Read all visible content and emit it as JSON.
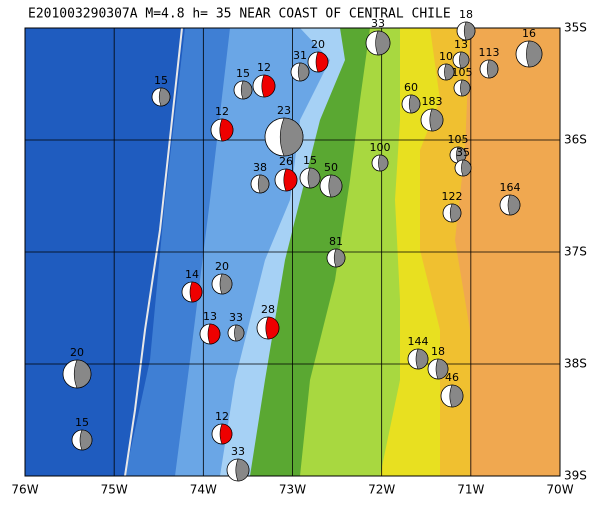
{
  "title": "E201003290307A M=4.8 h= 35 NEAR COAST OF CENTRAL CHILE",
  "lon_labels": [
    "76W",
    "75W",
    "74W",
    "73W",
    "72W",
    "71W",
    "70W"
  ],
  "lat_labels": [
    "35S",
    "36S",
    "37S",
    "38S",
    "39S"
  ],
  "events": [
    {
      "label": "15"
    },
    {
      "label": "15"
    },
    {
      "label": "12"
    },
    {
      "label": "31"
    },
    {
      "label": "20"
    },
    {
      "label": "33"
    },
    {
      "label": "18"
    },
    {
      "label": "10"
    },
    {
      "label": "13"
    },
    {
      "label": "105"
    },
    {
      "label": "113"
    },
    {
      "label": "16"
    },
    {
      "label": "60"
    },
    {
      "label": "12"
    },
    {
      "label": "23"
    },
    {
      "label": "183"
    },
    {
      "label": "100"
    },
    {
      "label": "105"
    },
    {
      "label": "35"
    },
    {
      "label": "15"
    },
    {
      "label": "50"
    },
    {
      "label": "38"
    },
    {
      "label": "26"
    },
    {
      "label": "122"
    },
    {
      "label": "164"
    },
    {
      "label": "81"
    },
    {
      "label": "20"
    },
    {
      "label": "14"
    },
    {
      "label": "28"
    },
    {
      "label": "33"
    },
    {
      "label": "13"
    },
    {
      "label": "20"
    },
    {
      "label": "144"
    },
    {
      "label": "18"
    },
    {
      "label": "46"
    },
    {
      "label": "12"
    },
    {
      "label": "15"
    },
    {
      "label": "33"
    }
  ]
}
